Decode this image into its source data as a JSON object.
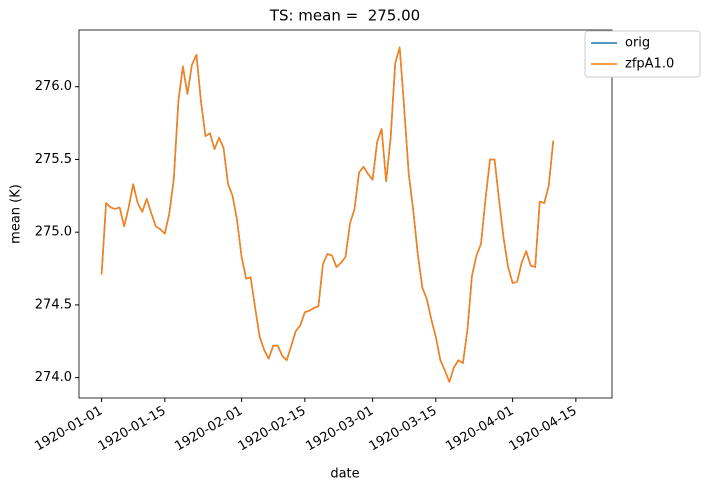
{
  "chart_data": {
    "type": "line",
    "title": "TS: mean =  275.00",
    "x_label": "date",
    "y_label": "mean (K)",
    "x": [
      "1920-01-01",
      "1920-01-02",
      "1920-01-03",
      "1920-01-04",
      "1920-01-05",
      "1920-01-06",
      "1920-01-07",
      "1920-01-08",
      "1920-01-09",
      "1920-01-10",
      "1920-01-11",
      "1920-01-12",
      "1920-01-13",
      "1920-01-14",
      "1920-01-15",
      "1920-01-16",
      "1920-01-17",
      "1920-01-18",
      "1920-01-19",
      "1920-01-20",
      "1920-01-21",
      "1920-01-22",
      "1920-01-23",
      "1920-01-24",
      "1920-01-25",
      "1920-01-26",
      "1920-01-27",
      "1920-01-28",
      "1920-01-29",
      "1920-01-30",
      "1920-01-31",
      "1920-02-01",
      "1920-02-02",
      "1920-02-03",
      "1920-02-04",
      "1920-02-05",
      "1920-02-06",
      "1920-02-07",
      "1920-02-08",
      "1920-02-09",
      "1920-02-10",
      "1920-02-11",
      "1920-02-12",
      "1920-02-13",
      "1920-02-14",
      "1920-02-15",
      "1920-02-16",
      "1920-02-17",
      "1920-02-18",
      "1920-02-19",
      "1920-02-20",
      "1920-02-21",
      "1920-02-22",
      "1920-02-23",
      "1920-02-24",
      "1920-02-25",
      "1920-02-26",
      "1920-02-27",
      "1920-02-28",
      "1920-02-29",
      "1920-03-01",
      "1920-03-02",
      "1920-03-03",
      "1920-03-04",
      "1920-03-05",
      "1920-03-06",
      "1920-03-07",
      "1920-03-08",
      "1920-03-09",
      "1920-03-10",
      "1920-03-11",
      "1920-03-12",
      "1920-03-13",
      "1920-03-14",
      "1920-03-15",
      "1920-03-16",
      "1920-03-17",
      "1920-03-18",
      "1920-03-19",
      "1920-03-20",
      "1920-03-21",
      "1920-03-22",
      "1920-03-23",
      "1920-03-24",
      "1920-03-25",
      "1920-03-26",
      "1920-03-27",
      "1920-03-28",
      "1920-03-29",
      "1920-03-30",
      "1920-03-31",
      "1920-04-01",
      "1920-04-02",
      "1920-04-03",
      "1920-04-04",
      "1920-04-05",
      "1920-04-06",
      "1920-04-07",
      "1920-04-08",
      "1920-04-09",
      "1920-04-10"
    ],
    "series": [
      {
        "name": "orig",
        "color": "#1f77b4",
        "values": [
          274.71,
          275.2,
          275.17,
          275.16,
          275.17,
          275.04,
          275.17,
          275.33,
          275.2,
          275.14,
          275.23,
          275.13,
          275.04,
          275.02,
          274.99,
          275.13,
          275.37,
          275.9,
          276.14,
          275.95,
          276.15,
          276.22,
          275.9,
          275.66,
          275.68,
          275.57,
          275.65,
          275.58,
          275.33,
          275.25,
          275.08,
          274.83,
          274.68,
          274.69,
          274.48,
          274.28,
          274.19,
          274.13,
          274.22,
          274.22,
          274.15,
          274.12,
          274.22,
          274.32,
          274.36,
          274.45,
          274.46,
          274.48,
          274.49,
          274.78,
          274.85,
          274.84,
          274.76,
          274.79,
          274.83,
          275.06,
          275.16,
          275.41,
          275.45,
          275.4,
          275.36,
          275.62,
          275.71,
          275.35,
          275.65,
          276.16,
          276.27,
          275.85,
          275.4,
          275.15,
          274.85,
          274.62,
          274.54,
          274.4,
          274.28,
          274.12,
          274.05,
          273.97,
          274.07,
          274.12,
          274.1,
          274.33,
          274.7,
          274.84,
          274.92,
          275.23,
          275.5,
          275.5,
          275.22,
          274.96,
          274.76,
          274.65,
          274.66,
          274.79,
          274.87,
          274.77,
          274.76,
          275.21,
          275.2,
          275.32,
          275.63
        ]
      },
      {
        "name": "zfpA1.0",
        "color": "#ff7f0e",
        "values": [
          274.71,
          275.2,
          275.17,
          275.16,
          275.17,
          275.04,
          275.17,
          275.33,
          275.2,
          275.14,
          275.23,
          275.13,
          275.04,
          275.02,
          274.99,
          275.13,
          275.37,
          275.9,
          276.14,
          275.95,
          276.15,
          276.22,
          275.9,
          275.66,
          275.68,
          275.57,
          275.65,
          275.58,
          275.33,
          275.25,
          275.08,
          274.83,
          274.68,
          274.69,
          274.48,
          274.28,
          274.19,
          274.13,
          274.22,
          274.22,
          274.15,
          274.12,
          274.22,
          274.32,
          274.36,
          274.45,
          274.46,
          274.48,
          274.49,
          274.78,
          274.85,
          274.84,
          274.76,
          274.79,
          274.83,
          275.06,
          275.16,
          275.41,
          275.45,
          275.4,
          275.36,
          275.62,
          275.71,
          275.35,
          275.65,
          276.16,
          276.27,
          275.85,
          275.4,
          275.15,
          274.85,
          274.62,
          274.54,
          274.4,
          274.28,
          274.12,
          274.05,
          273.97,
          274.07,
          274.12,
          274.1,
          274.33,
          274.7,
          274.84,
          274.92,
          275.23,
          275.5,
          275.5,
          275.22,
          274.96,
          274.76,
          274.65,
          274.66,
          274.79,
          274.87,
          274.77,
          274.76,
          275.21,
          275.2,
          275.32,
          275.63
        ]
      }
    ],
    "xlim": [
      "1919-12-27",
      "1920-04-23"
    ],
    "xticks": [
      "1920-01-01",
      "1920-01-15",
      "1920-02-01",
      "1920-02-15",
      "1920-03-01",
      "1920-03-15",
      "1920-04-01",
      "1920-04-15"
    ],
    "ylim": [
      273.86,
      276.39
    ],
    "yticks": [
      {
        "value": 274,
        "label": "274.0"
      },
      274.5,
      {
        "value": 275,
        "label": "275.0"
      },
      275.5,
      {
        "value": 276,
        "label": "276.0"
      }
    ],
    "legend": "outside-upper-right"
  }
}
